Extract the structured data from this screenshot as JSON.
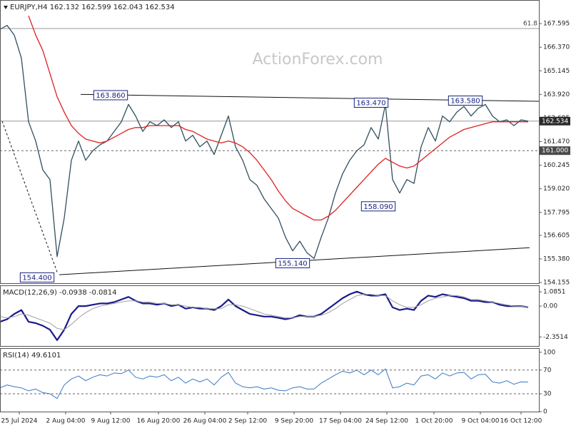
{
  "chart_data": [
    {
      "type": "line",
      "title": "EURJPY,H4 162.132 162.599 162.043 162.534",
      "watermark": "ActionForex.com",
      "x": [
        0,
        1,
        2,
        3,
        4,
        5,
        6,
        7,
        8,
        9,
        10,
        11,
        12,
        13,
        14,
        15,
        16,
        17,
        18,
        19,
        20,
        21,
        22,
        23,
        24,
        25,
        26,
        27,
        28,
        29,
        30,
        31,
        32,
        33,
        34,
        35,
        36,
        37,
        38,
        39,
        40,
        41,
        42,
        43,
        44,
        45,
        46,
        47,
        48,
        49,
        50,
        51,
        52,
        53,
        54,
        55,
        56,
        57,
        58,
        59,
        60,
        61,
        62,
        63,
        64,
        65,
        66,
        67,
        68,
        69,
        70,
        71,
        72,
        73,
        74
      ],
      "xlim": [
        0,
        75.5
      ],
      "ylim": [
        154.12,
        168.82
      ],
      "yticks": [
        167.595,
        {
          "value": 166.37,
          "label": "166.370"
        },
        165.145,
        {
          "value": 163.92,
          "label": "163.920"
        },
        162.695,
        {
          "value": 161.47,
          "label": "161.470"
        },
        160.245,
        {
          "value": 159.02,
          "label": "159.020"
        },
        157.795,
        156.605,
        {
          "value": 155.38,
          "label": "155.380"
        },
        154.155
      ],
      "series": [
        {
          "color": "#2f4f5f",
          "values": [
            167.3,
            167.5,
            167.0,
            165.8,
            162.5,
            161.5,
            160.0,
            159.5,
            155.5,
            157.5,
            160.5,
            161.5,
            160.5,
            161.0,
            161.3,
            161.5,
            162.0,
            162.5,
            163.4,
            162.8,
            162.0,
            162.5,
            162.3,
            162.6,
            162.2,
            162.5,
            161.5,
            161.8,
            161.2,
            161.5,
            160.8,
            161.8,
            162.8,
            161.2,
            160.5,
            159.5,
            159.2,
            158.5,
            158.0,
            157.5,
            156.5,
            155.8,
            156.3,
            155.7,
            155.4,
            156.5,
            157.5,
            158.8,
            159.8,
            160.5,
            161.0,
            161.3,
            162.2,
            161.6,
            163.4,
            159.5,
            158.8,
            159.5,
            159.3,
            161.2,
            162.2,
            161.5,
            162.8,
            162.5,
            163.0,
            163.3,
            162.8,
            163.2,
            163.4,
            162.8,
            162.5,
            162.6,
            162.3,
            162.6,
            162.53
          ]
        },
        {
          "color": "#e02020",
          "values": [
            null,
            null,
            null,
            null,
            168.0,
            167.0,
            166.2,
            165.0,
            163.8,
            163.0,
            162.3,
            161.9,
            161.6,
            161.5,
            161.4,
            161.5,
            161.7,
            161.9,
            162.1,
            162.2,
            162.2,
            162.3,
            162.3,
            162.3,
            162.3,
            162.3,
            162.1,
            162.0,
            161.8,
            161.6,
            161.5,
            161.4,
            161.5,
            161.4,
            161.2,
            160.9,
            160.5,
            160.0,
            159.5,
            158.9,
            158.4,
            158.0,
            157.8,
            157.6,
            157.4,
            157.4,
            157.6,
            157.9,
            158.3,
            158.7,
            159.1,
            159.5,
            159.9,
            160.3,
            160.6,
            160.4,
            160.2,
            160.1,
            160.2,
            160.5,
            160.8,
            161.1,
            161.4,
            161.7,
            161.9,
            162.1,
            162.2,
            162.3,
            162.4,
            162.5,
            162.5,
            162.5,
            162.5,
            162.5,
            162.5
          ]
        }
      ],
      "levels": [
        {
          "value": 167.34,
          "label": "61.8",
          "line": "solid",
          "tag": "inside"
        },
        {
          "value": 162.534,
          "line": "solid",
          "tag": "box"
        },
        {
          "value": 161,
          "label": "161.000",
          "line": "dashed",
          "tag": "box"
        }
      ],
      "trendlines": [
        {
          "x": [
            11.3,
            75.5
          ],
          "y": [
            163.92,
            163.56
          ],
          "line": "solid"
        },
        {
          "x": [
            8.3,
            74.2
          ],
          "y": [
            154.56,
            155.96
          ],
          "line": "solid"
        },
        {
          "x": [
            0.3,
            8.0
          ],
          "y": [
            162.53,
            154.7
          ],
          "line": "dashed"
        }
      ],
      "annotations": [
        {
          "x": 15.5,
          "y": 163.86,
          "text": "163.860"
        },
        {
          "x": 52.0,
          "y": 163.47,
          "text": "163.470"
        },
        {
          "x": 65.2,
          "y": 163.58,
          "text": "163.580"
        },
        {
          "x": 53.0,
          "y": 158.09,
          "text": "158.090"
        },
        {
          "x": 41.0,
          "y": 155.14,
          "text": "155.140"
        },
        {
          "x": 5.2,
          "y": 154.4,
          "text": "154.400"
        }
      ]
    },
    {
      "type": "line",
      "title": "MACD(12,26,9) -0.0938 -0.0814",
      "x": [
        0,
        1,
        2,
        3,
        4,
        5,
        6,
        7,
        8,
        9,
        10,
        11,
        12,
        13,
        14,
        15,
        16,
        17,
        18,
        19,
        20,
        21,
        22,
        23,
        24,
        25,
        26,
        27,
        28,
        29,
        30,
        31,
        32,
        33,
        34,
        35,
        36,
        37,
        38,
        39,
        40,
        41,
        42,
        43,
        44,
        45,
        46,
        47,
        48,
        49,
        50,
        51,
        52,
        53,
        54,
        55,
        56,
        57,
        58,
        59,
        60,
        61,
        62,
        63,
        64,
        65,
        66,
        67,
        68,
        69,
        70,
        71,
        72,
        73,
        74
      ],
      "xlim": [
        0,
        75.5
      ],
      "ylim": [
        -3.04,
        1.58
      ],
      "yticks": [
        1.0851,
        {
          "value": 0,
          "label": "0.00"
        },
        -2.3514
      ],
      "series": [
        {
          "color": "#1a1a8c",
          "width": 2.2,
          "values": [
            -1.2,
            -1.0,
            -0.6,
            -0.3,
            -1.2,
            -1.3,
            -1.5,
            -1.8,
            -2.6,
            -1.8,
            -0.6,
            0.0,
            0.0,
            0.1,
            0.2,
            0.2,
            0.3,
            0.5,
            0.7,
            0.4,
            0.2,
            0.2,
            0.1,
            0.2,
            0.0,
            0.1,
            -0.2,
            -0.1,
            -0.2,
            -0.2,
            -0.3,
            0.0,
            0.5,
            0.0,
            -0.3,
            -0.6,
            -0.7,
            -0.8,
            -0.8,
            -0.9,
            -1.0,
            -0.9,
            -0.7,
            -0.8,
            -0.8,
            -0.6,
            -0.2,
            0.2,
            0.6,
            0.9,
            1.1,
            0.9,
            0.8,
            0.8,
            0.9,
            -0.1,
            -0.3,
            -0.2,
            -0.3,
            0.4,
            0.8,
            0.7,
            0.9,
            0.8,
            0.7,
            0.6,
            0.4,
            0.4,
            0.3,
            0.3,
            0.1,
            0.0,
            0.0,
            0.0,
            -0.09
          ]
        },
        {
          "color": "#a0a0a0",
          "width": 1,
          "values": [
            -0.8,
            -0.9,
            -0.8,
            -0.6,
            -0.7,
            -0.9,
            -1.1,
            -1.3,
            -1.7,
            -1.8,
            -1.4,
            -0.9,
            -0.5,
            -0.2,
            0.0,
            0.1,
            0.2,
            0.3,
            0.4,
            0.4,
            0.3,
            0.3,
            0.2,
            0.2,
            0.1,
            0.1,
            0.0,
            -0.1,
            -0.1,
            -0.2,
            -0.2,
            -0.2,
            0.1,
            0.1,
            0.0,
            -0.2,
            -0.4,
            -0.6,
            -0.7,
            -0.8,
            -0.9,
            -0.9,
            -0.8,
            -0.8,
            -0.8,
            -0.7,
            -0.5,
            -0.2,
            0.2,
            0.5,
            0.8,
            0.9,
            0.9,
            0.8,
            0.8,
            0.4,
            0.1,
            -0.1,
            -0.1,
            0.1,
            0.4,
            0.6,
            0.7,
            0.8,
            0.8,
            0.7,
            0.5,
            0.5,
            0.4,
            0.3,
            0.2,
            0.1,
            0.0,
            0.0,
            -0.08
          ]
        }
      ]
    },
    {
      "type": "line",
      "title": "RSI(14) 49.6101",
      "x": [
        0,
        1,
        2,
        3,
        4,
        5,
        6,
        7,
        8,
        9,
        10,
        11,
        12,
        13,
        14,
        15,
        16,
        17,
        18,
        19,
        20,
        21,
        22,
        23,
        24,
        25,
        26,
        27,
        28,
        29,
        30,
        31,
        32,
        33,
        34,
        35,
        36,
        37,
        38,
        39,
        40,
        41,
        42,
        43,
        44,
        45,
        46,
        47,
        48,
        49,
        50,
        51,
        52,
        53,
        54,
        55,
        56,
        57,
        58,
        59,
        60,
        61,
        62,
        63,
        64,
        65,
        66,
        67,
        68,
        69,
        70,
        71,
        72,
        73,
        74
      ],
      "xlim": [
        0,
        75.5
      ],
      "ylim": [
        0,
        107
      ],
      "yticks": [
        100,
        70,
        30,
        0
      ],
      "levels": [
        {
          "value": 70,
          "line": "dashed"
        },
        {
          "value": 30,
          "line": "dashed"
        }
      ],
      "xticks": [
        {
          "value": 2.7,
          "label": "25 Jul 2024"
        },
        {
          "value": 9.2,
          "label": "2 Aug 04:00"
        },
        {
          "value": 15.5,
          "label": "9 Aug 12:00"
        },
        {
          "value": 22.2,
          "label": "16 Aug 20:00"
        },
        {
          "value": 28.7,
          "label": "26 Aug 04:00"
        },
        {
          "value": 34.7,
          "label": "2 Sep 12:00"
        },
        {
          "value": 41.2,
          "label": "9 Sep 20:00"
        },
        {
          "value": 47.7,
          "label": "17 Sep 04:00"
        },
        {
          "value": 54.2,
          "label": "24 Sep 12:00"
        },
        {
          "value": 60.8,
          "label": "1 Oct 20:00"
        },
        {
          "value": 67.3,
          "label": "9 Oct 04:00"
        },
        {
          "value": 73.0,
          "label": "16 Oct 12:00"
        }
      ],
      "series": [
        {
          "color": "#3a78c8",
          "width": 1,
          "values": [
            40,
            45,
            42,
            40,
            35,
            38,
            32,
            30,
            22,
            45,
            55,
            60,
            52,
            58,
            62,
            60,
            65,
            64,
            70,
            58,
            55,
            60,
            58,
            62,
            52,
            58,
            48,
            55,
            50,
            55,
            45,
            58,
            66,
            48,
            42,
            40,
            42,
            38,
            40,
            36,
            35,
            40,
            42,
            38,
            38,
            48,
            55,
            62,
            68,
            65,
            70,
            62,
            70,
            62,
            72,
            40,
            42,
            48,
            45,
            60,
            62,
            55,
            65,
            60,
            65,
            66,
            55,
            62,
            63,
            50,
            48,
            52,
            46,
            50,
            49.6
          ]
        }
      ]
    }
  ]
}
